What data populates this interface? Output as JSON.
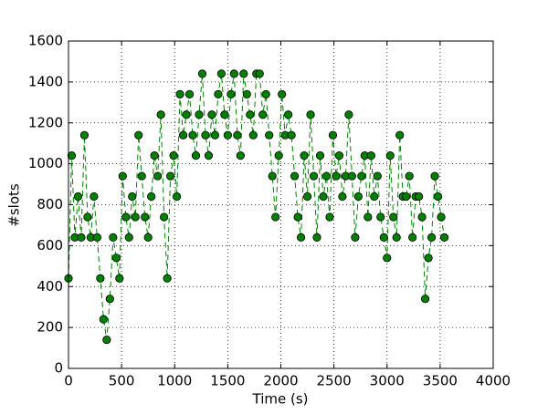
{
  "chart_data": {
    "type": "line",
    "xlabel": "Time (s)",
    "ylabel": "#slots",
    "x": [
      0,
      30,
      60,
      90,
      120,
      150,
      180,
      210,
      240,
      270,
      300,
      330,
      360,
      390,
      420,
      450,
      480,
      510,
      540,
      570,
      600,
      630,
      660,
      690,
      720,
      750,
      780,
      810,
      840,
      870,
      900,
      930,
      960,
      990,
      1020,
      1050,
      1080,
      1110,
      1140,
      1170,
      1200,
      1230,
      1260,
      1290,
      1320,
      1350,
      1380,
      1410,
      1440,
      1470,
      1500,
      1530,
      1560,
      1590,
      1620,
      1650,
      1680,
      1710,
      1740,
      1770,
      1800,
      1830,
      1860,
      1890,
      1920,
      1950,
      1980,
      2010,
      2040,
      2070,
      2100,
      2130,
      2160,
      2190,
      2220,
      2250,
      2280,
      2310,
      2340,
      2370,
      2400,
      2430,
      2460,
      2490,
      2520,
      2550,
      2580,
      2610,
      2640,
      2670,
      2700,
      2730,
      2760,
      2790,
      2820,
      2850,
      2880,
      2910,
      2940,
      2970,
      3000,
      3030,
      3060,
      3090,
      3120,
      3150,
      3180,
      3210,
      3240,
      3270,
      3300,
      3330,
      3360,
      3390,
      3420,
      3450,
      3480,
      3510,
      3540
    ],
    "series": [
      {
        "color": "#008000",
        "values": [
          440,
          1040,
          640,
          840,
          640,
          1140,
          740,
          640,
          840,
          640,
          440,
          240,
          140,
          340,
          640,
          540,
          440,
          940,
          740,
          640,
          840,
          740,
          1140,
          940,
          740,
          640,
          840,
          1040,
          940,
          1240,
          740,
          440,
          940,
          1040,
          840,
          1340,
          1140,
          1240,
          1340,
          1140,
          1040,
          1240,
          1440,
          1140,
          1040,
          1240,
          1140,
          1340,
          1440,
          1240,
          1140,
          1340,
          1440,
          1140,
          1040,
          1440,
          1340,
          1240,
          1140,
          1440,
          1440,
          1240,
          1340,
          1140,
          940,
          740,
          1040,
          1340,
          1140,
          1240,
          1140,
          940,
          740,
          640,
          1040,
          840,
          1240,
          940,
          640,
          1040,
          840,
          940,
          740,
          1140,
          940,
          1040,
          840,
          940,
          1240,
          940,
          640,
          840,
          940,
          1040,
          740,
          1040,
          840,
          940,
          740,
          640,
          540,
          1040,
          740,
          640,
          1140,
          840,
          840,
          940,
          640,
          840,
          840,
          740,
          340,
          540,
          640,
          940,
          840,
          740,
          640
        ]
      }
    ],
    "xlim": [
      0,
      4000
    ],
    "xticks": [
      0,
      500,
      1000,
      1500,
      2000,
      2500,
      3000,
      3500,
      4000
    ],
    "ylim": [
      0,
      1600
    ],
    "yticks": [
      0,
      200,
      400,
      600,
      800,
      1000,
      1200,
      1400,
      1600
    ],
    "grid": true
  }
}
